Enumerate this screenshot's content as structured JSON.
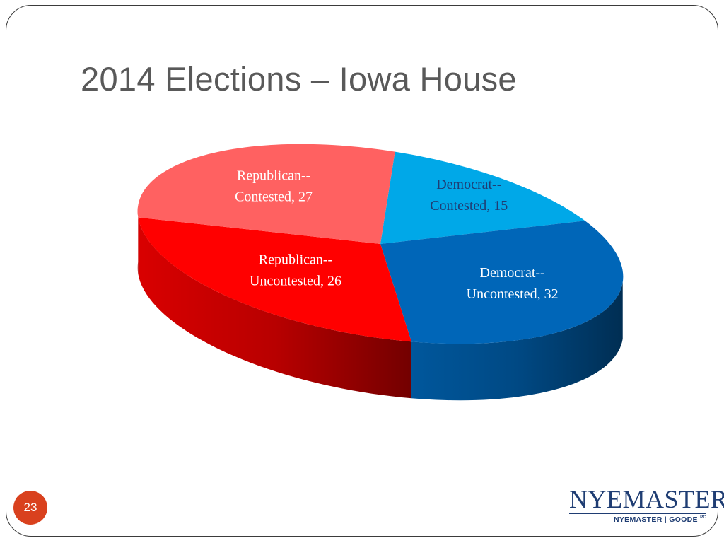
{
  "slide": {
    "title": "2014 Elections – Iowa House",
    "number": "23"
  },
  "logo": {
    "wordmark": "NYEMASTER",
    "subline": "NYEMASTER | GOODE",
    "suffix": "PC"
  },
  "chart_data": {
    "type": "pie",
    "style": "3d",
    "title": "",
    "categories": [
      "Democrat--Contested",
      "Democrat--Uncontested",
      "Republican--Uncontested",
      "Republican--Contested"
    ],
    "values": [
      15,
      32,
      26,
      27
    ],
    "labels": [
      [
        "Democrat--",
        "Contested, 15"
      ],
      [
        "Democrat--",
        "Uncontested, 32"
      ],
      [
        "Republican--",
        "Uncontested, 26"
      ],
      [
        "Republican--",
        "Contested, 27"
      ]
    ],
    "colors": [
      "#00a8e8",
      "#0066b8",
      "#ff0000",
      "#ff6161"
    ],
    "legend": "none",
    "data_labels": "category name and value"
  }
}
